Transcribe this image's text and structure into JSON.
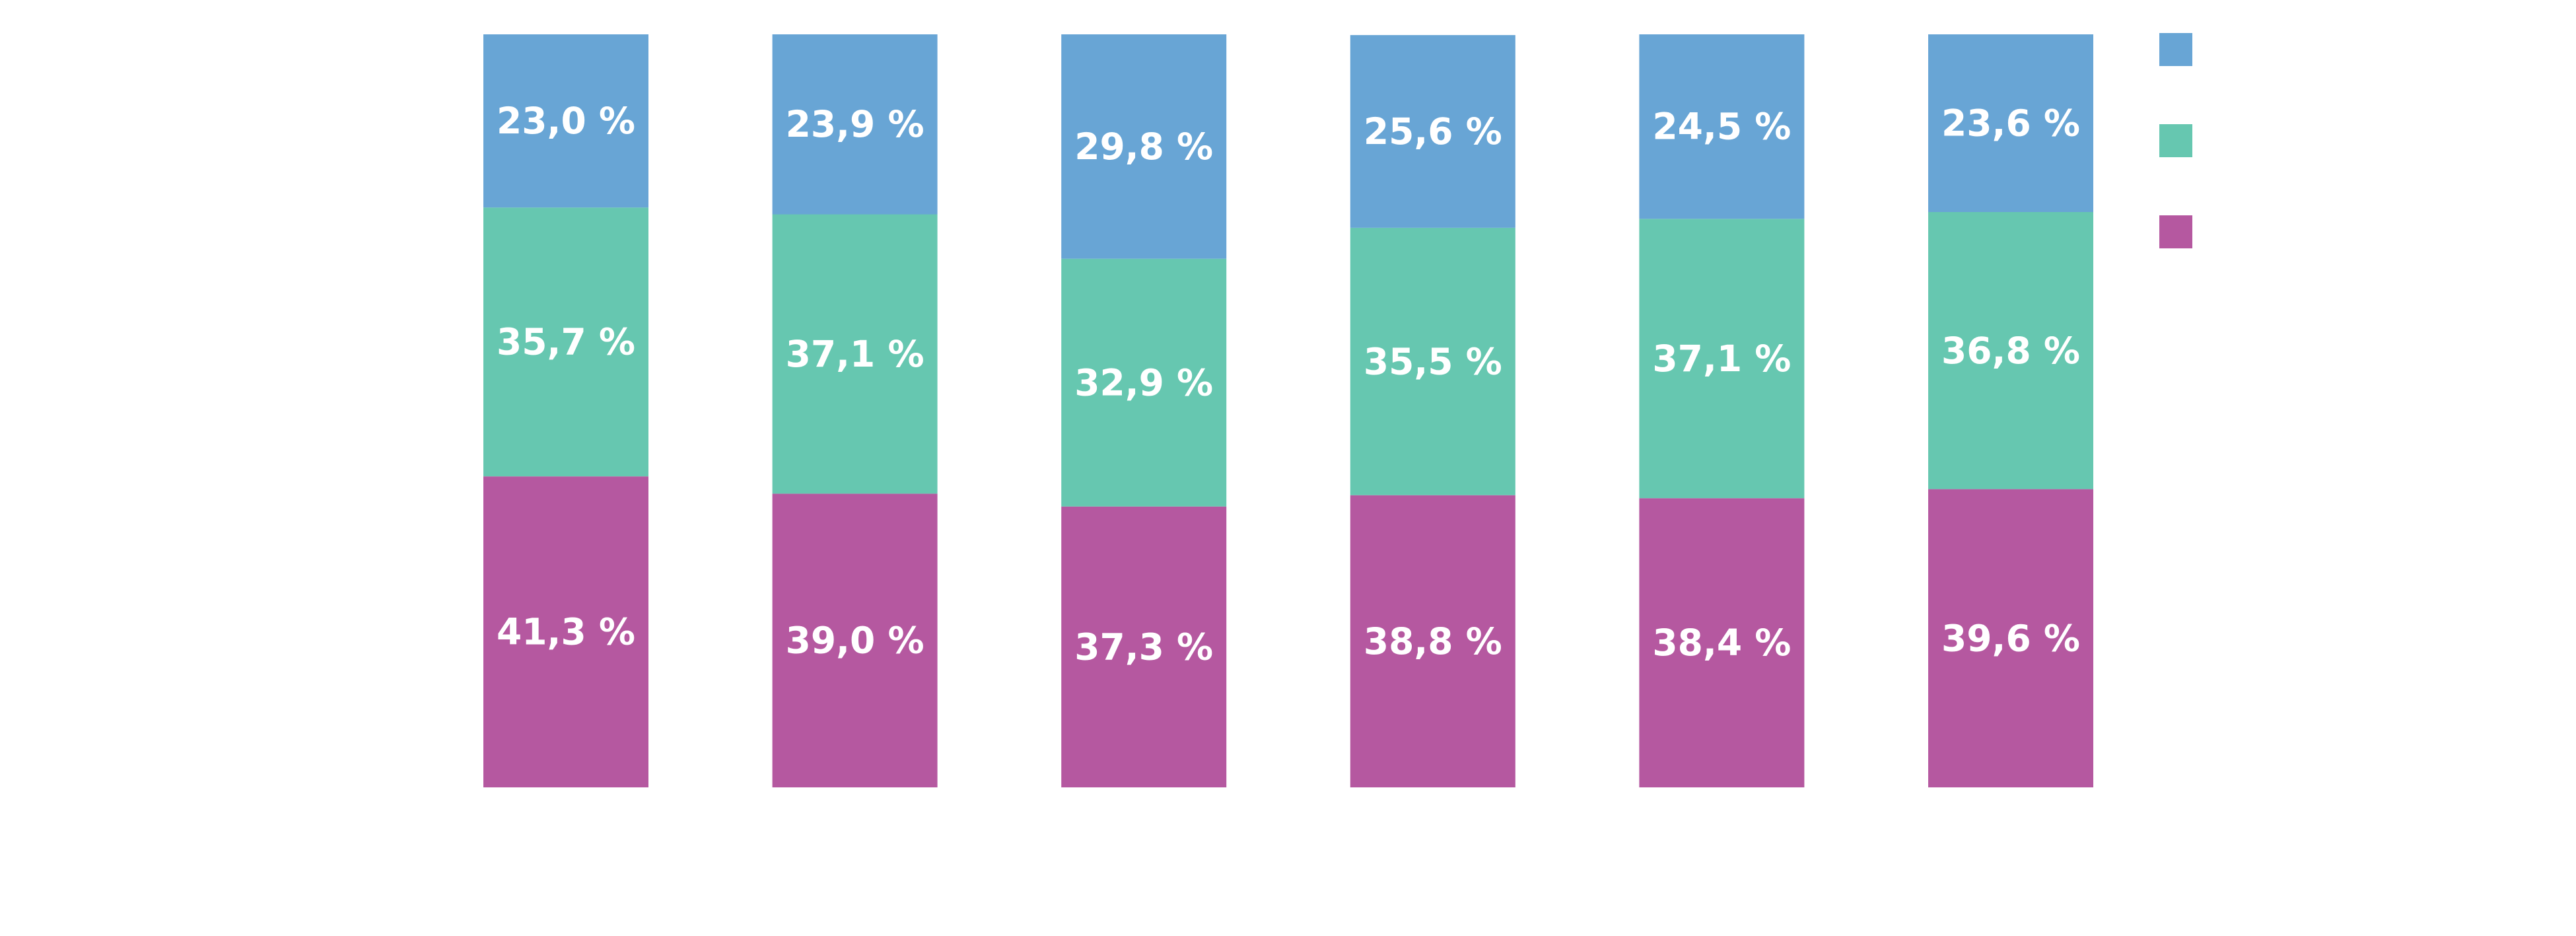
{
  "chart_data": {
    "type": "bar",
    "stacked": true,
    "orientation": "vertical",
    "categories": [
      "",
      "",
      "",
      "",
      "",
      ""
    ],
    "series": [
      {
        "color": "#b558a0",
        "values": [
          41.3,
          39.0,
          37.3,
          38.8,
          38.4,
          39.6
        ],
        "labels": [
          "41,3 %",
          "39,0 %",
          "37,3 %",
          "38,8 %",
          "38,4 %",
          "39,6 %"
        ]
      },
      {
        "color": "#66c7b0",
        "values": [
          35.7,
          37.1,
          32.9,
          35.5,
          37.1,
          36.8
        ],
        "labels": [
          "35,7 %",
          "37,1 %",
          "32,9 %",
          "35,5 %",
          "37,1 %",
          "36,8 %"
        ]
      },
      {
        "color": "#68a5d5",
        "values": [
          23.0,
          23.9,
          29.8,
          25.6,
          24.5,
          23.6
        ],
        "labels": [
          "23,0 %",
          "23,9 %",
          "29,8 %",
          "25,6 %",
          "24,5 %",
          "23,6 %"
        ]
      }
    ],
    "ylim": [
      0,
      100
    ],
    "title": "",
    "xlabel": "",
    "ylabel": "",
    "grid": false,
    "legend_position": "top-right"
  }
}
